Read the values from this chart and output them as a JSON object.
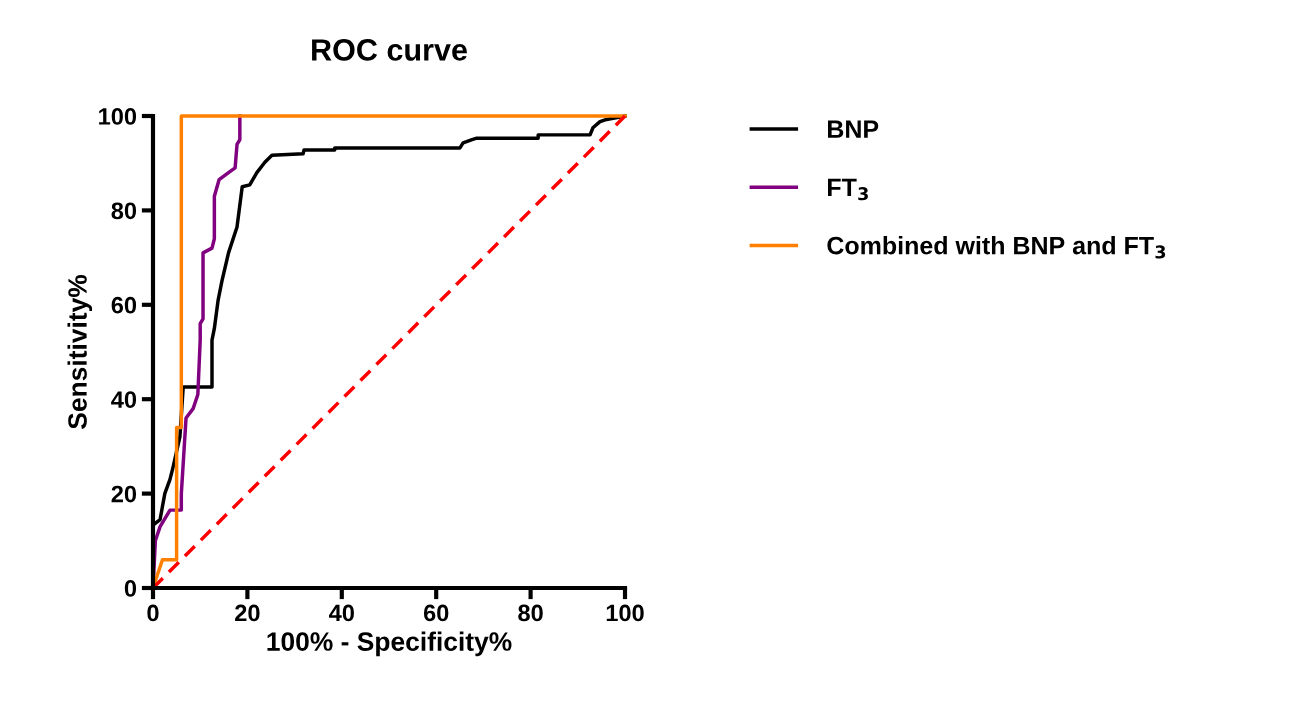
{
  "chart_data": {
    "type": "line",
    "title": "ROC curve",
    "xlabel": "100% - Specificity%",
    "ylabel": "Sensitivity%",
    "xlim": [
      0,
      100
    ],
    "ylim": [
      0,
      100
    ],
    "xticks": [
      0,
      20,
      40,
      60,
      80,
      100
    ],
    "yticks": [
      0,
      20,
      40,
      60,
      80,
      100
    ],
    "grid": false,
    "legend": "right",
    "marker": "none",
    "series": [
      {
        "name": "BNP",
        "color": "#000000",
        "x": [
          0,
          0,
          1.5,
          2.5,
          3.6,
          4.2,
          5.7,
          6.4,
          12.5,
          12.5,
          13,
          13.8,
          14.6,
          16,
          17.8,
          18.9,
          20.5,
          22,
          23.7,
          25.2,
          31.8,
          32,
          38.5,
          38.5,
          65,
          65.7,
          67.6,
          68.6,
          81.6,
          81.6,
          92.6,
          93.2,
          94.7,
          95.8,
          100
        ],
        "values": [
          0,
          13.3,
          14.5,
          20,
          23,
          25.4,
          32,
          42.6,
          42.6,
          52.5,
          55,
          61,
          65,
          71,
          76.5,
          85,
          85.4,
          88,
          90.2,
          91.7,
          92,
          92.8,
          92.8,
          93.2,
          93.2,
          94.3,
          95,
          95.3,
          95.3,
          96,
          96,
          97.5,
          98.8,
          99.2,
          100
        ]
      },
      {
        "name": "FT$_{3}$",
        "color": "#800080",
        "x": [
          0,
          0.5,
          1.5,
          3.6,
          6,
          6,
          7,
          8.5,
          9.5,
          10,
          10,
          10.6,
          10.6,
          12.5,
          13,
          13,
          14,
          16,
          17.4,
          17.8,
          18.4,
          18.4
        ],
        "values": [
          0,
          10,
          13,
          16.5,
          16.5,
          20,
          36,
          38,
          41,
          52.5,
          56,
          57,
          71,
          72,
          74,
          83,
          86.5,
          88,
          89,
          94,
          95,
          100
        ]
      },
      {
        "name": "Combined with BNP and FT$_{3}$",
        "color": "#ff8000",
        "x": [
          0,
          2,
          5,
          5,
          6,
          6,
          100
        ],
        "values": [
          0,
          6,
          6,
          34,
          34,
          100,
          100
        ]
      },
      {
        "color": "#ff0000",
        "line_style": "dashed",
        "x": [
          0,
          100
        ],
        "values": [
          0,
          100
        ]
      }
    ]
  }
}
